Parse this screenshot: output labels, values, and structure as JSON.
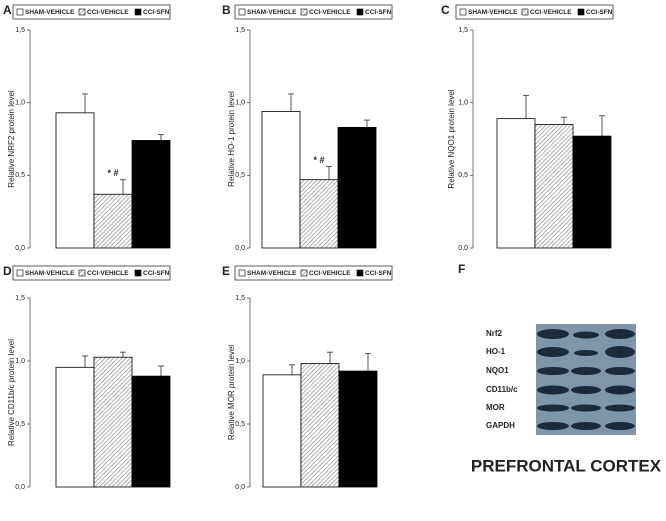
{
  "chart_data": [
    {
      "type": "bar",
      "panel": "A",
      "y_label": "Relative NRF2 protein level",
      "ylim": [
        0,
        1.5
      ],
      "yticks": [
        {
          "value": 0,
          "label": "0,0"
        },
        {
          "value": 0.5,
          "label": "0,5"
        },
        {
          "value": 1.0,
          "label": "1,0"
        },
        {
          "value": 1.5,
          "label": "1,5"
        }
      ],
      "series": [
        {
          "name": "SHAM-VEHICLE",
          "color": "#ffffff",
          "values": [
            0.93
          ],
          "errors": [
            0.13
          ]
        },
        {
          "name": "CCI-VEHICLE",
          "color": "#9a9a9a",
          "pattern": "hatch",
          "values": [
            0.37
          ],
          "errors": [
            0.1
          ],
          "annotation": "* #"
        },
        {
          "name": "CCI-SFN",
          "color": "#000000",
          "values": [
            0.74
          ],
          "errors": [
            0.04
          ]
        }
      ]
    },
    {
      "type": "bar",
      "panel": "B",
      "y_label": "Relative HO-1 protein level",
      "ylim": [
        0,
        1.5
      ],
      "yticks": [
        {
          "value": 0,
          "label": "0,0"
        },
        {
          "value": 0.5,
          "label": "0,5"
        },
        {
          "value": 1.0,
          "label": "1,0"
        },
        {
          "value": 1.5,
          "label": "1,5"
        }
      ],
      "series": [
        {
          "name": "SHAM-VEHICLE",
          "color": "#ffffff",
          "values": [
            0.94
          ],
          "errors": [
            0.12
          ]
        },
        {
          "name": "CCI-VEHICLE",
          "color": "#9a9a9a",
          "pattern": "hatch",
          "values": [
            0.47
          ],
          "errors": [
            0.09
          ],
          "annotation": "* #"
        },
        {
          "name": "CCI-SFN",
          "color": "#000000",
          "values": [
            0.83
          ],
          "errors": [
            0.05
          ]
        }
      ]
    },
    {
      "type": "bar",
      "panel": "C",
      "y_label": "Relative NQO1 protein level",
      "ylim": [
        0,
        1.5
      ],
      "yticks": [
        {
          "value": 0,
          "label": "0,0"
        },
        {
          "value": 0.5,
          "label": "0,5"
        },
        {
          "value": 1.0,
          "label": "1,0"
        },
        {
          "value": 1.5,
          "label": "1,5"
        }
      ],
      "series": [
        {
          "name": "SHAM-VEHICLE",
          "color": "#ffffff",
          "values": [
            0.89
          ],
          "errors": [
            0.16
          ]
        },
        {
          "name": "CCI-VEHICLE",
          "color": "#9a9a9a",
          "pattern": "hatch",
          "values": [
            0.85
          ],
          "errors": [
            0.05
          ]
        },
        {
          "name": "CCI-SFN",
          "color": "#000000",
          "values": [
            0.77
          ],
          "errors": [
            0.14
          ]
        }
      ]
    },
    {
      "type": "bar",
      "panel": "D",
      "y_label": "Relative CD11b/c protein level",
      "ylim": [
        0,
        1.5
      ],
      "yticks": [
        {
          "value": 0,
          "label": "0,0"
        },
        {
          "value": 0.5,
          "label": "0,5"
        },
        {
          "value": 1.0,
          "label": "1,0"
        },
        {
          "value": 1.5,
          "label": "1,5"
        }
      ],
      "series": [
        {
          "name": "SHAM-VEHICLE",
          "color": "#ffffff",
          "values": [
            0.95
          ],
          "errors": [
            0.09
          ]
        },
        {
          "name": "CCI-VEHICLE",
          "color": "#9a9a9a",
          "pattern": "hatch",
          "values": [
            1.03
          ],
          "errors": [
            0.04
          ]
        },
        {
          "name": "CCI-SFN",
          "color": "#000000",
          "values": [
            0.88
          ],
          "errors": [
            0.08
          ]
        }
      ]
    },
    {
      "type": "bar",
      "panel": "E",
      "y_label": "Relative MOR protein level",
      "ylim": [
        0,
        1.5
      ],
      "yticks": [
        {
          "value": 0,
          "label": "0,0"
        },
        {
          "value": 0.5,
          "label": "0,5"
        },
        {
          "value": 1.0,
          "label": "1,0"
        },
        {
          "value": 1.5,
          "label": "1,5"
        }
      ],
      "series": [
        {
          "name": "SHAM-VEHICLE",
          "color": "#ffffff",
          "values": [
            0.89
          ],
          "errors": [
            0.08
          ]
        },
        {
          "name": "CCI-VEHICLE",
          "color": "#9a9a9a",
          "pattern": "hatch",
          "values": [
            0.98
          ],
          "errors": [
            0.09
          ]
        },
        {
          "name": "CCI-SFN",
          "color": "#000000",
          "values": [
            0.92
          ],
          "errors": [
            0.14
          ]
        }
      ]
    }
  ],
  "blot": {
    "panel": "F",
    "rows": [
      "Nrf2",
      "HO-1",
      "NQO1",
      "CD11b/c",
      "MOR",
      "GAPDH"
    ]
  },
  "region": "PREFRONTAL CORTEX"
}
